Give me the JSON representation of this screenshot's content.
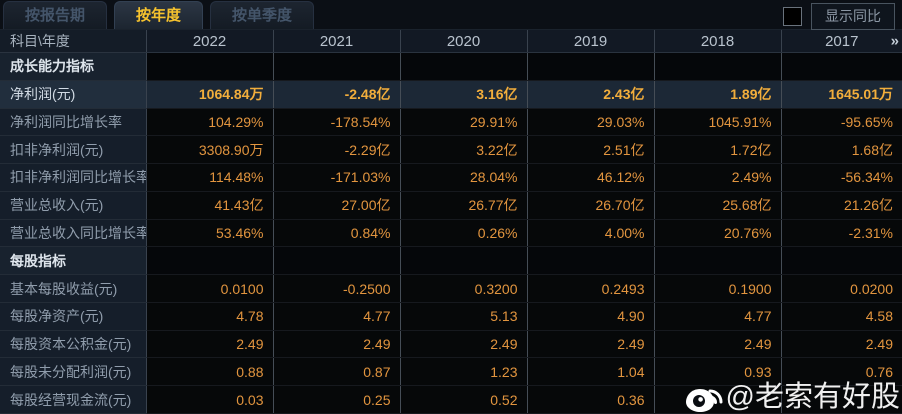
{
  "tabs": [
    {
      "label": "按报告期",
      "active": false
    },
    {
      "label": "按年度",
      "active": true
    },
    {
      "label": "按单季度",
      "active": false
    }
  ],
  "controls": {
    "show_yoy_label": "显示同比",
    "checkbox_checked": false
  },
  "table": {
    "corner_label": "科目\\年度",
    "year_columns": [
      "2022",
      "2021",
      "2020",
      "2019",
      "2018",
      "2017"
    ],
    "more_icon": "»",
    "rows": [
      {
        "type": "section",
        "label": "成长能力指标",
        "values": [
          "",
          "",
          "",
          "",
          "",
          ""
        ]
      },
      {
        "type": "data",
        "highlight": true,
        "label": "净利润(元)",
        "values": [
          "1064.84万",
          "-2.48亿",
          "3.16亿",
          "2.43亿",
          "1.89亿",
          "1645.01万"
        ]
      },
      {
        "type": "data",
        "label": "净利润同比增长率",
        "values": [
          "104.29%",
          "-178.54%",
          "29.91%",
          "29.03%",
          "1045.91%",
          "-95.65%"
        ]
      },
      {
        "type": "data",
        "label": "扣非净利润(元)",
        "values": [
          "3308.90万",
          "-2.29亿",
          "3.22亿",
          "2.51亿",
          "1.72亿",
          "1.68亿"
        ]
      },
      {
        "type": "data",
        "label": "扣非净利润同比增长率",
        "values": [
          "114.48%",
          "-171.03%",
          "28.04%",
          "46.12%",
          "2.49%",
          "-56.34%"
        ]
      },
      {
        "type": "data",
        "label": "营业总收入(元)",
        "values": [
          "41.43亿",
          "27.00亿",
          "26.77亿",
          "26.70亿",
          "25.68亿",
          "21.26亿"
        ]
      },
      {
        "type": "data",
        "label": "营业总收入同比增长率",
        "values": [
          "53.46%",
          "0.84%",
          "0.26%",
          "4.00%",
          "20.76%",
          "-2.31%"
        ]
      },
      {
        "type": "section",
        "label": "每股指标",
        "values": [
          "",
          "",
          "",
          "",
          "",
          ""
        ]
      },
      {
        "type": "data",
        "label": "基本每股收益(元)",
        "values": [
          "0.0100",
          "-0.2500",
          "0.3200",
          "0.2493",
          "0.1900",
          "0.0200"
        ]
      },
      {
        "type": "data",
        "label": "每股净资产(元)",
        "values": [
          "4.78",
          "4.77",
          "5.13",
          "4.90",
          "4.77",
          "4.58"
        ]
      },
      {
        "type": "data",
        "label": "每股资本公积金(元)",
        "values": [
          "2.49",
          "2.49",
          "2.49",
          "2.49",
          "2.49",
          "2.49"
        ]
      },
      {
        "type": "data",
        "label": "每股未分配利润(元)",
        "values": [
          "0.88",
          "0.87",
          "1.23",
          "1.04",
          "0.93",
          "0.76"
        ]
      },
      {
        "type": "data",
        "label": "每股经营现金流(元)",
        "values": [
          "0.03",
          "0.25",
          "0.52",
          "0.36",
          "",
          ""
        ]
      }
    ]
  },
  "watermark": {
    "handle": "@老索有好股"
  },
  "colors": {
    "background": "#090c10",
    "tab_active_text": "#f5c22e",
    "value_orange": "#e2953f",
    "highlight_gold": "#f2ae3c",
    "highlight_row_bg": "#1c2836",
    "label_column_bg": "#151e2a",
    "grid_line": "#454d56"
  }
}
